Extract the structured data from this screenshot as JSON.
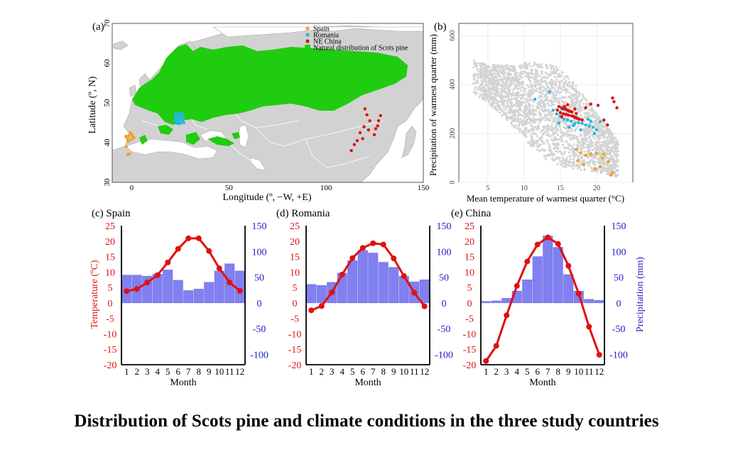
{
  "figure_title": "Distribution of Scots pine and climate conditions in the three study countries",
  "chart_data": [
    {
      "panel": "(a)",
      "type": "map",
      "xlabel": "Longitude (º, −W, +E)",
      "ylabel": "Latitude (º, N)",
      "x_ticks": [
        0,
        50,
        100,
        150
      ],
      "y_ticks": [
        30,
        40,
        50,
        60,
        70
      ],
      "xlim": [
        -10,
        150
      ],
      "ylim": [
        30,
        70
      ],
      "legend": [
        "Spain",
        "Romania",
        "NE China",
        "Natural distribution of Scots pine"
      ],
      "colors": {
        "spain": "#f0a020",
        "romania": "#22b8e8",
        "china": "#e01010",
        "distribution": "#20cc10",
        "land": "#d2d2d2",
        "sea": "#ffffff"
      },
      "points": {
        "spain": [
          [
            -1.5,
            41.8
          ],
          [
            -0.8,
            42.5
          ],
          [
            -2.2,
            41.0
          ],
          [
            0.5,
            41.5
          ],
          [
            -1.8,
            40.3
          ],
          [
            -0.3,
            40.8
          ],
          [
            -2.8,
            39.0
          ],
          [
            -1.0,
            37.2
          ],
          [
            -2.0,
            37.0
          ],
          [
            0.2,
            42.0
          ],
          [
            -3.0,
            41.6
          ],
          [
            1.2,
            41.2
          ]
        ],
        "romania": [
          [
            22.5,
            46.5
          ],
          [
            23.5,
            47.0
          ],
          [
            24.5,
            46.0
          ],
          [
            25.5,
            45.8
          ],
          [
            24.0,
            45.5
          ],
          [
            25.8,
            46.8
          ],
          [
            23.0,
            45.8
          ],
          [
            26.2,
            45.5
          ],
          [
            24.8,
            47.2
          ],
          [
            22.8,
            47.3
          ],
          [
            25.2,
            44.9
          ],
          [
            23.8,
            46.3
          ],
          [
            26.5,
            46.2
          ],
          [
            22.0,
            45.6
          ],
          [
            24.2,
            44.8
          ],
          [
            25.9,
            47.5
          ],
          [
            23.2,
            44.9
          ],
          [
            26.8,
            45.0
          ]
        ],
        "china": [
          [
            120.0,
            48.5
          ],
          [
            121.0,
            47.0
          ],
          [
            122.5,
            45.5
          ],
          [
            119.5,
            44.0
          ],
          [
            121.8,
            43.2
          ],
          [
            117.5,
            42.5
          ],
          [
            118.8,
            41.0
          ],
          [
            116.0,
            40.5
          ],
          [
            114.5,
            39.5
          ],
          [
            113.0,
            38.0
          ],
          [
            125.5,
            43.5
          ],
          [
            126.5,
            44.2
          ],
          [
            127.0,
            45.5
          ],
          [
            128.0,
            46.8
          ],
          [
            124.8,
            42.0
          ]
        ]
      }
    },
    {
      "panel": "(b)",
      "type": "scatter",
      "xlabel": "Mean temperature of warmest quarter (°C)",
      "ylabel": "Precipitation of warmest quarter (mm)",
      "x_ticks": [
        5,
        10,
        15,
        20
      ],
      "y_ticks": [
        0,
        200,
        400,
        600
      ],
      "xlim": [
        1,
        25
      ],
      "ylim": [
        0,
        650
      ],
      "background_color": "#d4d4d4",
      "series": [
        {
          "color": "#f0a020",
          "points": [
            [
              17.2,
              135
            ],
            [
              17.8,
              120
            ],
            [
              18.5,
              110
            ],
            [
              19.2,
              115
            ],
            [
              20.0,
              118
            ],
            [
              20.8,
              100
            ],
            [
              21.6,
              85
            ],
            [
              22.2,
              40
            ],
            [
              19.8,
              55
            ],
            [
              17.4,
              88
            ],
            [
              18.2,
              72
            ],
            [
              21.0,
              115
            ],
            [
              20.5,
              64
            ],
            [
              22.0,
              30
            ]
          ]
        },
        {
          "color": "#22b8e8",
          "points": [
            [
              13.5,
              370
            ],
            [
              11.5,
              340
            ],
            [
              14.0,
              295
            ],
            [
              14.5,
              280
            ],
            [
              15.0,
              270
            ],
            [
              15.5,
              258
            ],
            [
              16.0,
              255
            ],
            [
              16.5,
              250
            ],
            [
              17.0,
              240
            ],
            [
              17.5,
              245
            ],
            [
              18.0,
              242
            ],
            [
              18.5,
              235
            ],
            [
              19.0,
              230
            ],
            [
              19.5,
              225
            ],
            [
              20.0,
              215
            ],
            [
              16.2,
              225
            ],
            [
              17.8,
              215
            ],
            [
              19.2,
              250
            ],
            [
              15.2,
              300
            ],
            [
              16.8,
              232
            ],
            [
              18.8,
              258
            ],
            [
              20.5,
              248
            ],
            [
              17.2,
              268
            ],
            [
              14.8,
              242
            ],
            [
              19.7,
              200
            ]
          ]
        },
        {
          "color": "#e01010",
          "points": [
            [
              14.8,
              310
            ],
            [
              15.2,
              305
            ],
            [
              15.5,
              300
            ],
            [
              15.8,
              298
            ],
            [
              16.0,
              295
            ],
            [
              16.2,
              292
            ],
            [
              16.4,
              290
            ],
            [
              16.6,
              288
            ],
            [
              15.0,
              285
            ],
            [
              15.4,
              280
            ],
            [
              15.8,
              278
            ],
            [
              16.1,
              275
            ],
            [
              16.5,
              272
            ],
            [
              16.8,
              270
            ],
            [
              17.0,
              265
            ],
            [
              17.3,
              262
            ],
            [
              17.6,
              258
            ],
            [
              18.0,
              255
            ],
            [
              14.6,
              295
            ],
            [
              15.6,
              310
            ],
            [
              17.0,
              300
            ],
            [
              18.5,
              305
            ],
            [
              19.2,
              320
            ],
            [
              20.2,
              315
            ],
            [
              21.0,
              255
            ],
            [
              21.5,
              235
            ],
            [
              22.2,
              345
            ],
            [
              22.4,
              330
            ],
            [
              22.8,
              305
            ],
            [
              16.0,
              318
            ],
            [
              17.2,
              282
            ],
            [
              15.2,
              268
            ]
          ]
        }
      ]
    },
    {
      "panel": "(c) Spain",
      "type": "climate",
      "xlabel": "Month",
      "categories": [
        "1",
        "2",
        "3",
        "4",
        "5",
        "6",
        "7",
        "8",
        "9",
        "10",
        "11",
        "12"
      ],
      "temperature": [
        3.8,
        4.5,
        6.6,
        9.0,
        13.1,
        17.5,
        20.9,
        20.9,
        16.8,
        11.2,
        6.6,
        3.9
      ],
      "precipitation": [
        54,
        54,
        52,
        56,
        64,
        44,
        24,
        27,
        40,
        62,
        76,
        62
      ],
      "temp_ylim": [
        -20,
        25
      ],
      "precip_ylim": [
        -120,
        150
      ],
      "temp_ticks": [
        25,
        20,
        15,
        10,
        5,
        0,
        -5,
        -10,
        -15,
        -20
      ],
      "precip_ticks": [
        150,
        100,
        50,
        0,
        -50,
        -100
      ]
    },
    {
      "panel": "(d) Romania",
      "type": "climate",
      "xlabel": "Month",
      "categories": [
        "1",
        "2",
        "3",
        "4",
        "5",
        "6",
        "7",
        "8",
        "9",
        "10",
        "11",
        "12"
      ],
      "temperature": [
        -2.4,
        -1.0,
        3.4,
        9.2,
        14.5,
        17.8,
        19.3,
        18.9,
        14.4,
        8.7,
        3.3,
        -1.1
      ],
      "precipitation": [
        36,
        34,
        40,
        58,
        82,
        102,
        97,
        79,
        69,
        52,
        41,
        45
      ],
      "temp_ylim": [
        -20,
        25
      ],
      "precip_ylim": [
        -120,
        150
      ],
      "temp_ticks": [
        25,
        20,
        15,
        10,
        5,
        0,
        -5,
        -10,
        -15,
        -20
      ],
      "precip_ticks": [
        150,
        100,
        50,
        0,
        -50,
        -100
      ]
    },
    {
      "panel": "(e) China",
      "type": "climate",
      "xlabel": "Month",
      "ylabel_right": "Precipitation (mm)",
      "categories": [
        "1",
        "2",
        "3",
        "4",
        "5",
        "6",
        "7",
        "8",
        "9",
        "10",
        "11",
        "12"
      ],
      "temperature": [
        -18.8,
        -13.9,
        -4.0,
        5.5,
        13.4,
        18.9,
        21.2,
        19.1,
        12.0,
        3.0,
        -7.7,
        -16.8
      ],
      "precipitation": [
        3,
        4,
        9,
        23,
        45,
        90,
        130,
        108,
        55,
        23,
        7,
        5
      ],
      "temp_ylim": [
        -20,
        25
      ],
      "precip_ylim": [
        -120,
        150
      ],
      "temp_ticks": [
        25,
        20,
        15,
        10,
        5,
        0,
        -5,
        -10,
        -15,
        -20
      ],
      "precip_ticks": [
        150,
        100,
        50,
        0,
        -50,
        -100
      ]
    }
  ],
  "temperature_label": "Temperature (ºC)",
  "colors": {
    "temperature": "#e01010",
    "precipitation_bar": "#8080f0",
    "precipitation_axis": "#2020c0"
  }
}
